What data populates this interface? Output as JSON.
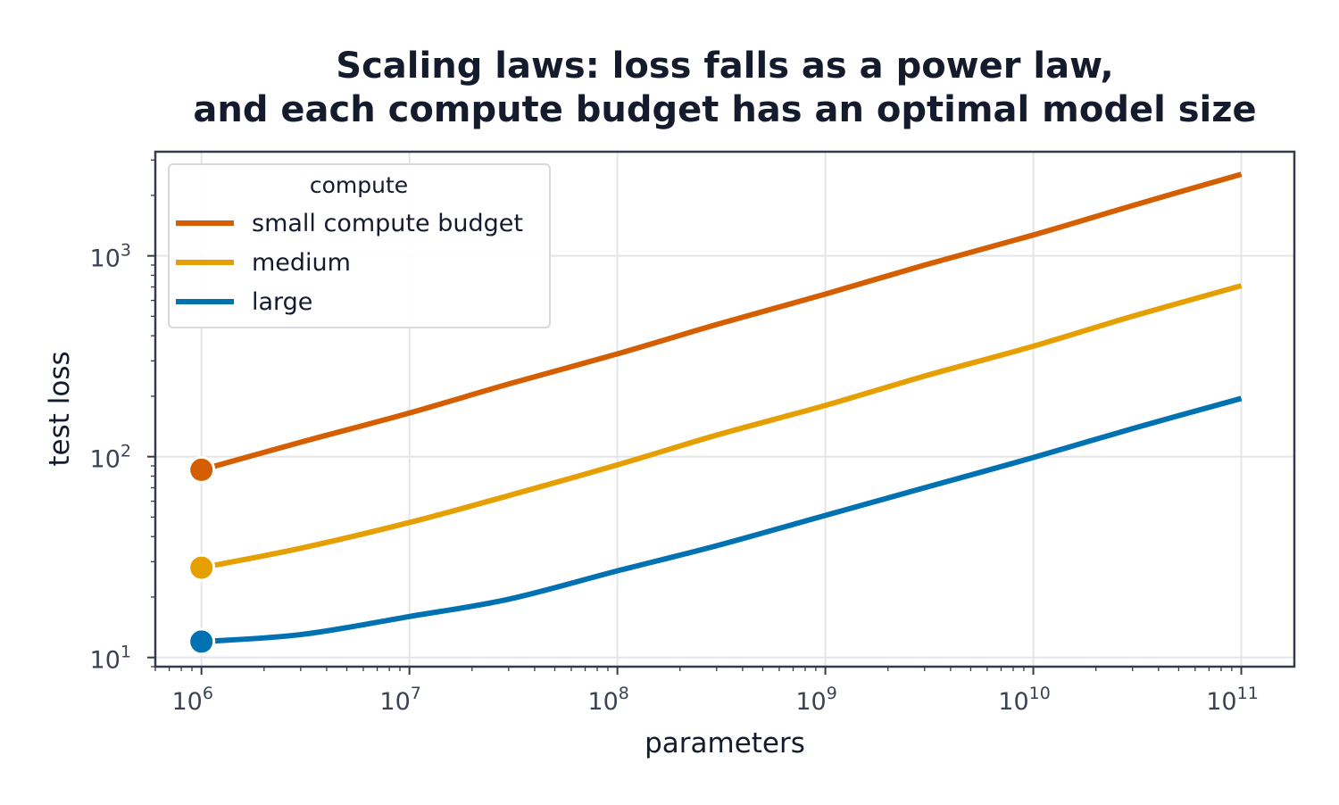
{
  "chart_data": {
    "type": "line",
    "title": "Scaling laws: loss falls as a power law,",
    "title_line2": "and each compute budget has an optimal model size",
    "xlabel": "parameters",
    "ylabel": "test loss",
    "xscale": "log",
    "yscale": "log",
    "xlim": [
      600000,
      180000000000
    ],
    "ylim": [
      9.0,
      3300
    ],
    "grid": true,
    "legend": {
      "title": "compute",
      "placement": "top-left"
    },
    "x_ticks": [
      {
        "value": 1000000,
        "base": "10",
        "exp": "6"
      },
      {
        "value": 10000000,
        "base": "10",
        "exp": "7"
      },
      {
        "value": 100000000,
        "base": "10",
        "exp": "8"
      },
      {
        "value": 1000000000,
        "base": "10",
        "exp": "9"
      },
      {
        "value": 10000000000,
        "base": "10",
        "exp": "10"
      },
      {
        "value": 100000000000,
        "base": "10",
        "exp": "11"
      }
    ],
    "y_ticks": [
      {
        "value": 10,
        "base": "10",
        "exp": "1"
      },
      {
        "value": 100,
        "base": "10",
        "exp": "2"
      },
      {
        "value": 1000,
        "base": "10",
        "exp": "3"
      }
    ],
    "x": [
      1000000,
      3000000,
      10000000,
      30000000,
      100000000,
      300000000,
      1000000000,
      3000000000,
      10000000000,
      30000000000,
      100000000000
    ],
    "series": [
      {
        "name": "small compute budget",
        "color": "#d55e00",
        "values": [
          86,
          118,
          165,
          230,
          325,
          455,
          645,
          900,
          1270,
          1780,
          2550
        ],
        "optimum": {
          "x": 1000000,
          "y": 86
        }
      },
      {
        "name": "medium",
        "color": "#e69f00",
        "values": [
          28,
          35,
          47,
          64,
          91,
          128,
          180,
          252,
          355,
          500,
          710
        ]
      },
      {
        "name": "large",
        "color": "#0072b2",
        "values": [
          12,
          13,
          16,
          19.5,
          27,
          36,
          51,
          70,
          99,
          138,
          195
        ]
      }
    ],
    "optimal_points": [
      {
        "series": "small compute budget",
        "x": 1000000,
        "y": 86,
        "color": "#d55e00"
      },
      {
        "series": "medium",
        "x": 1000000,
        "y": 28,
        "color": "#e69f00"
      },
      {
        "series": "large",
        "x": 1000000,
        "y": 12,
        "color": "#0072b2"
      }
    ]
  }
}
